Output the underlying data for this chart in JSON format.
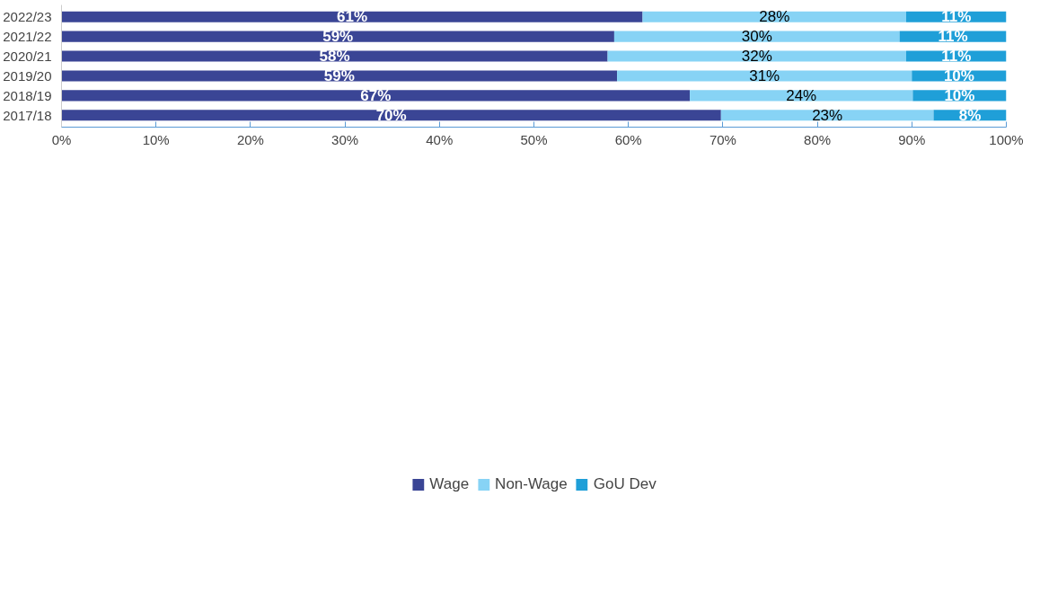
{
  "chart_data": {
    "type": "bar",
    "orientation": "horizontal",
    "stacked": true,
    "legend": "bottom",
    "grid": false,
    "categories": [
      "2022/23",
      "2021/22",
      "2020/21",
      "2019/20",
      "2018/19",
      "2017/18"
    ],
    "xlim": [
      0,
      100
    ],
    "xticks": [
      {
        "value": 0,
        "label": "0%"
      },
      {
        "value": 10,
        "label": "10%"
      },
      {
        "value": 20,
        "label": "20%"
      },
      {
        "value": 30,
        "label": "30%"
      },
      {
        "value": 40,
        "label": "40%"
      },
      {
        "value": 50,
        "label": "50%"
      },
      {
        "value": 60,
        "label": "60%"
      },
      {
        "value": 70,
        "label": "70%"
      },
      {
        "value": 80,
        "label": "80%"
      },
      {
        "value": 90,
        "label": "90%"
      },
      {
        "value": 100,
        "label": "100%"
      }
    ],
    "series": [
      {
        "name": "Wage",
        "color": "#3a4595",
        "values": [
          61.5,
          58.5,
          57.8,
          58.8,
          66.5,
          69.8
        ],
        "value_labels": [
          "61%",
          "59%",
          "58%",
          "59%",
          "67%",
          "70%"
        ]
      },
      {
        "name": "Non-Wage",
        "color": "#87d3f5",
        "values": [
          27.9,
          30.2,
          31.6,
          31.2,
          23.6,
          22.5
        ],
        "value_labels": [
          "28%",
          "30%",
          "32%",
          "31%",
          "24%",
          "23%"
        ]
      },
      {
        "name": "GoU Dev",
        "color": "#1f9fd8",
        "values": [
          10.6,
          11.3,
          10.6,
          10.0,
          9.9,
          7.7
        ],
        "value_labels": [
          "11%",
          "11%",
          "11%",
          "10%",
          "10%",
          "8%"
        ]
      }
    ]
  }
}
